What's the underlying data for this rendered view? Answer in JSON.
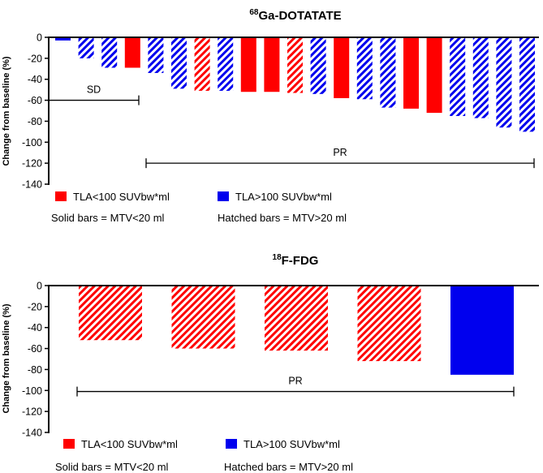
{
  "colors": {
    "red": "#ff0000",
    "blue": "#0000ee",
    "axis": "#000000",
    "background": "#ffffff"
  },
  "chart_data": [
    {
      "type": "bar",
      "title_sup": "68",
      "title_main": "Ga-DOTATATE",
      "ylabel": "Change from baseline (%)",
      "ylim": [
        -140,
        0
      ],
      "yticks": [
        "0",
        "-20",
        "-40",
        "-60",
        "-80",
        "-100",
        "-120",
        "-140"
      ],
      "values": [
        -3,
        -20,
        -29,
        -29,
        -34,
        -49,
        -51,
        -51,
        -52,
        -52,
        -53,
        -54,
        -58,
        -59,
        -67,
        -68,
        -72,
        -75,
        -77,
        -86,
        -90
      ],
      "colors": [
        "blue",
        "blue",
        "blue",
        "red",
        "blue",
        "blue",
        "red",
        "blue",
        "red",
        "red",
        "red",
        "blue",
        "red",
        "blue",
        "blue",
        "red",
        "red",
        "blue",
        "blue",
        "blue",
        "blue"
      ],
      "hatched": [
        false,
        true,
        true,
        false,
        true,
        true,
        true,
        true,
        false,
        false,
        true,
        true,
        false,
        true,
        true,
        false,
        false,
        true,
        true,
        true,
        true
      ],
      "ranges": [
        {
          "label": "SD",
          "y": -60,
          "from_bar": 0,
          "to_bar": 3
        },
        {
          "label": "PR",
          "y": -120,
          "from_bar": 4,
          "to_bar": 20
        }
      ],
      "legend": [
        {
          "label": "TLA<100 SUVbw*ml",
          "color": "red"
        },
        {
          "label": "TLA>100 SUVbw*ml",
          "color": "blue"
        }
      ],
      "notes": [
        "Solid bars = MTV<20 ml",
        "Hatched bars = MTV>20 ml"
      ]
    },
    {
      "type": "bar",
      "title_sup": "18",
      "title_main": "F-FDG",
      "ylabel": "Change from baseline (%)",
      "ylim": [
        -140,
        0
      ],
      "yticks": [
        "0",
        "-20",
        "-40",
        "-60",
        "-80",
        "-100",
        "-120",
        "-140"
      ],
      "values": [
        -52,
        -60,
        -62,
        -72,
        -85
      ],
      "colors": [
        "red",
        "red",
        "red",
        "red",
        "blue"
      ],
      "hatched": [
        true,
        true,
        true,
        true,
        false
      ],
      "ranges": [
        {
          "label": "PR",
          "y": -101,
          "from_bar": 0,
          "to_bar": 4
        }
      ],
      "legend": [
        {
          "label": "TLA<100 SUVbw*ml",
          "color": "red"
        },
        {
          "label": "TLA>100 SUVbw*ml",
          "color": "blue"
        }
      ],
      "notes": [
        "Solid bars = MTV<20 ml",
        "Hatched bars = MTV>20 ml"
      ]
    }
  ]
}
